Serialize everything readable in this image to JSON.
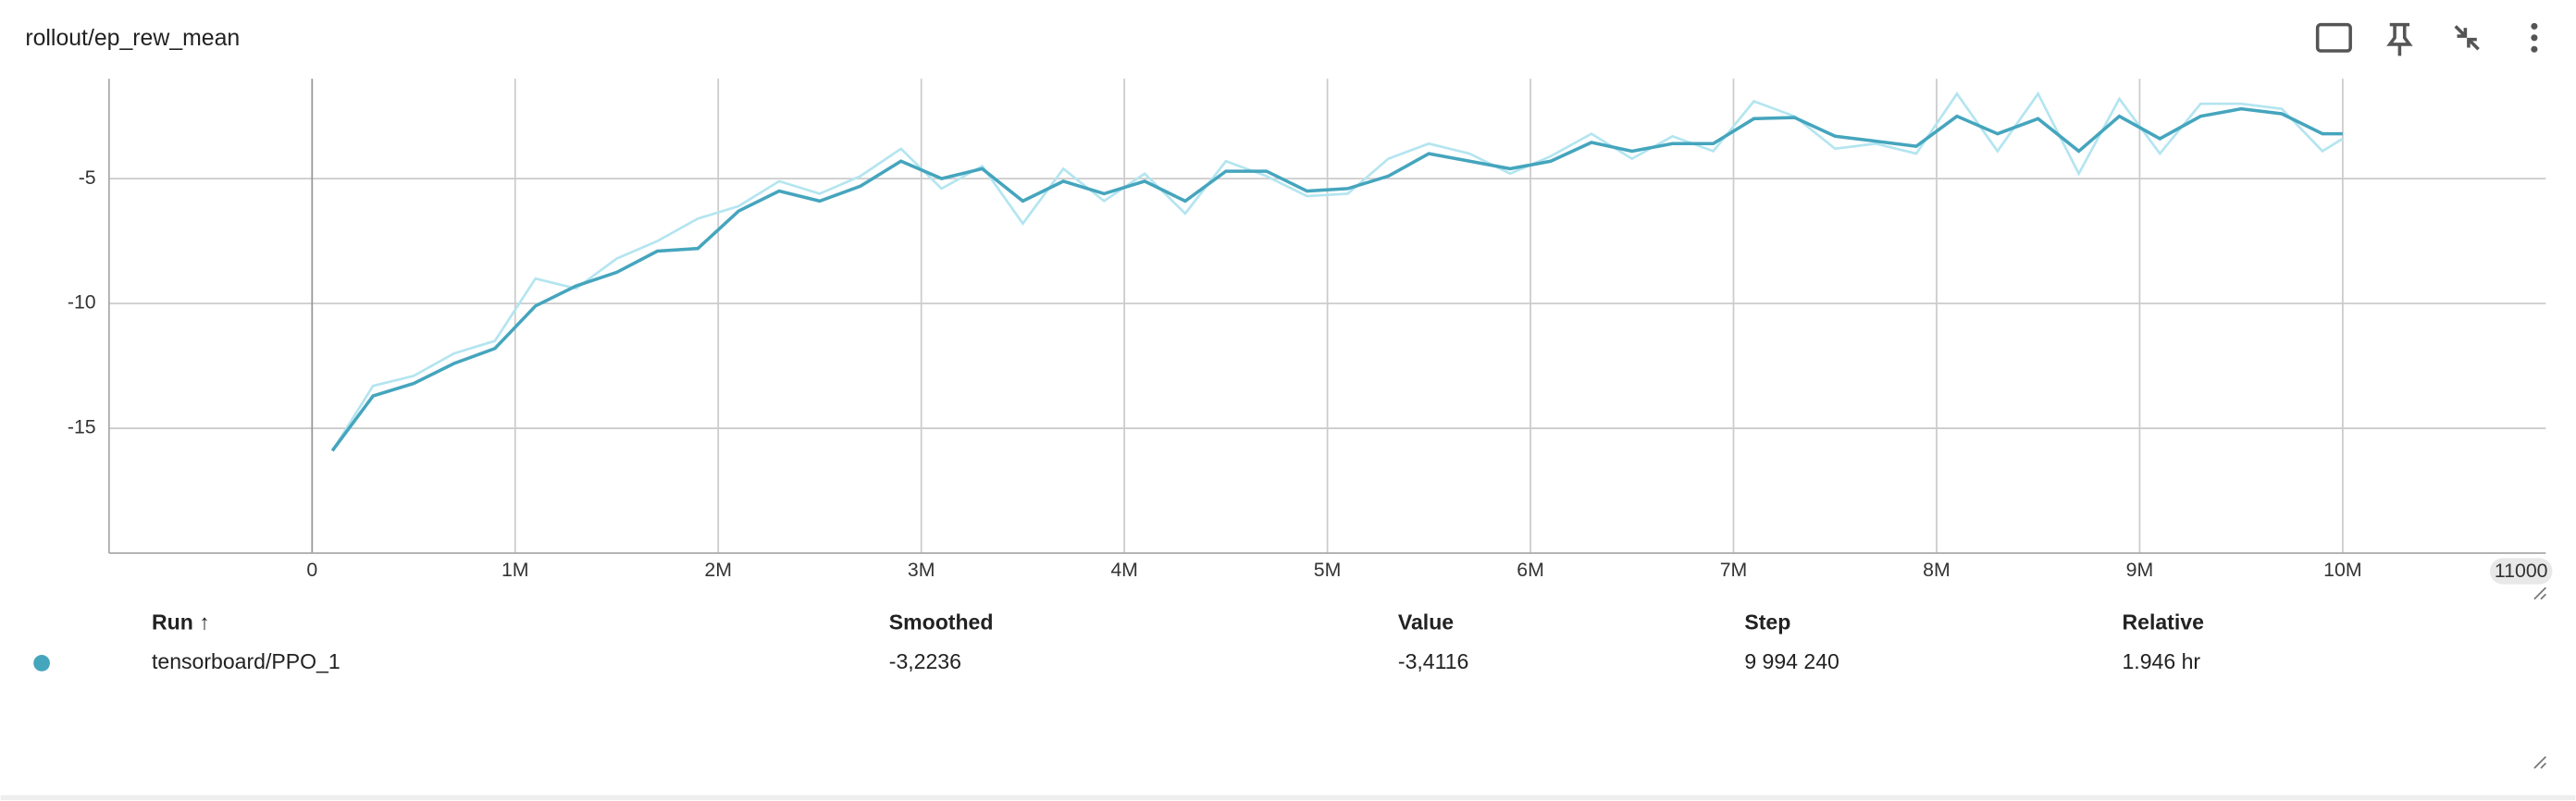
{
  "chart_data": {
    "type": "line",
    "title": "rollout/ep_rew_mean",
    "x": [
      100000,
      300000,
      500000,
      700000,
      900000,
      1100000,
      1300000,
      1500000,
      1700000,
      1900000,
      2100000,
      2300000,
      2500000,
      2700000,
      2900000,
      3100000,
      3300000,
      3500000,
      3700000,
      3900000,
      4100000,
      4300000,
      4500000,
      4700000,
      4900000,
      5100000,
      5300000,
      5500000,
      5700000,
      5900000,
      6100000,
      6300000,
      6500000,
      6700000,
      6900000,
      7100000,
      7300000,
      7500000,
      7700000,
      7900000,
      8100000,
      8300000,
      8500000,
      8700000,
      8900000,
      9100000,
      9300000,
      9500000,
      9700000,
      9900000,
      10000000
    ],
    "series": [
      {
        "color": "#b3e5f0",
        "values": [
          -15.9,
          -13.3,
          -12.9,
          -12.0,
          -11.5,
          -9.0,
          -9.4,
          -8.2,
          -7.5,
          -6.6,
          -6.1,
          -5.1,
          -5.6,
          -4.9,
          -3.8,
          -5.4,
          -4.5,
          -6.8,
          -4.6,
          -5.9,
          -4.8,
          -6.4,
          -4.3,
          -4.9,
          -5.7,
          -5.6,
          -4.2,
          -3.6,
          -4.0,
          -4.8,
          -4.1,
          -3.2,
          -4.2,
          -3.3,
          -3.9,
          -1.9,
          -2.5,
          -3.8,
          -3.6,
          -4.0,
          -1.6,
          -3.9,
          -1.6,
          -4.8,
          -1.8,
          -4.0,
          -2.0,
          -2.0,
          -2.2,
          -3.9,
          -3.4
        ]
      },
      {
        "color": "#45a5bd",
        "values": [
          -15.9,
          -13.7,
          -13.2,
          -12.4,
          -11.8,
          -10.1,
          -9.3,
          -8.75,
          -7.9,
          -7.8,
          -6.3,
          -5.5,
          -5.9,
          -5.3,
          -4.3,
          -5.0,
          -4.6,
          -5.9,
          -5.1,
          -5.6,
          -5.1,
          -5.9,
          -4.7,
          -4.7,
          -5.5,
          -5.4,
          -4.9,
          -4.0,
          -4.3,
          -4.6,
          -4.3,
          -3.55,
          -3.9,
          -3.6,
          -3.6,
          -2.6,
          -2.55,
          -3.3,
          -3.5,
          -3.7,
          -2.5,
          -3.2,
          -2.6,
          -3.9,
          -2.5,
          -3.4,
          -2.5,
          -2.2,
          -2.4,
          -3.2,
          -3.2
        ]
      }
    ],
    "xlim": [
      -1000000,
      11000000
    ],
    "xticks": [
      0,
      {
        "value": 1000000,
        "label": "1M"
      },
      {
        "value": 2000000,
        "label": "2M"
      },
      {
        "value": 3000000,
        "label": "3M"
      },
      {
        "value": 4000000,
        "label": "4M"
      },
      {
        "value": 5000000,
        "label": "5M"
      },
      {
        "value": 6000000,
        "label": "6M"
      },
      {
        "value": 7000000,
        "label": "7M"
      },
      {
        "value": 8000000,
        "label": "8M"
      },
      {
        "value": 9000000,
        "label": "9M"
      },
      {
        "value": 10000000,
        "label": "10M"
      }
    ],
    "x_axis_end_label": "11000",
    "ylim": [
      -20,
      -1
    ],
    "yticks": [
      -15,
      -10,
      -5
    ],
    "grid": true
  },
  "table": {
    "header": [
      "Run ↑",
      "Smoothed",
      "Value",
      "Step",
      "Relative"
    ],
    "rows": [
      [
        "tensorboard/PPO_1",
        "-3,2236",
        "-3,4116",
        "9 994 240",
        "1.946 hr"
      ]
    ]
  }
}
